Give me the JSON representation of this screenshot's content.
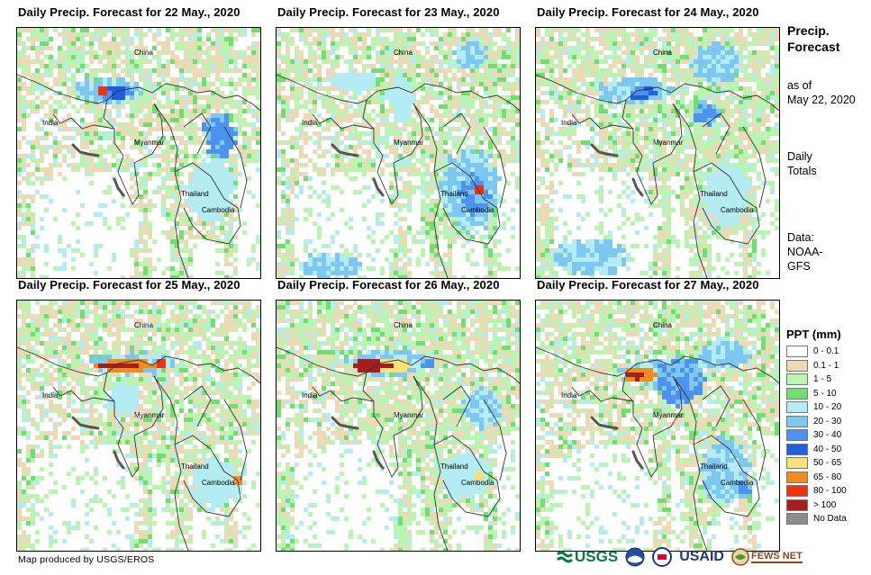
{
  "maps": [
    {
      "title": "Daily Precip. Forecast for 22 May., 2020",
      "scenario": 0
    },
    {
      "title": "Daily Precip. Forecast for 23 May., 2020",
      "scenario": 1
    },
    {
      "title": "Daily Precip. Forecast for 24 May., 2020",
      "scenario": 2
    },
    {
      "title": "Daily Precip. Forecast for 25 May., 2020",
      "scenario": 3
    },
    {
      "title": "Daily Precip. Forecast for 26 May., 2020",
      "scenario": 4
    },
    {
      "title": "Daily Precip. Forecast for 27 May., 2020",
      "scenario": 5
    }
  ],
  "place_labels": {
    "china": "China",
    "india": "India",
    "myanmar": "Myanmar",
    "thailand": "Thailand",
    "cambodia": "Cambodia"
  },
  "side": {
    "title_line1": "Precip.",
    "title_line2": "Forecast",
    "asof_line1": "as of",
    "asof_line2": "May 22, 2020",
    "daily_line1": "Daily",
    "daily_line2": "Totals",
    "data_line1": "Data:",
    "data_line2": "NOAA-",
    "data_line3": "GFS"
  },
  "legend": {
    "title": "PPT (mm)",
    "items": [
      {
        "label": "0 - 0.1",
        "color": "#ffffff"
      },
      {
        "label": "0.1 - 1",
        "color": "#ecd9b6"
      },
      {
        "label": "1 - 5",
        "color": "#b9f4b0"
      },
      {
        "label": "5 - 10",
        "color": "#6fe06f"
      },
      {
        "label": "10 - 20",
        "color": "#b4ecf4"
      },
      {
        "label": "20 - 30",
        "color": "#7cc8f2"
      },
      {
        "label": "30 - 40",
        "color": "#4b93ee"
      },
      {
        "label": "40 - 50",
        "color": "#1f5fdc"
      },
      {
        "label": "50 - 65",
        "color": "#f6e27a"
      },
      {
        "label": "65 - 80",
        "color": "#f08c1c"
      },
      {
        "label": "80 - 100",
        "color": "#ee3311"
      },
      {
        "label": "> 100",
        "color": "#a51d1d"
      },
      {
        "label": "No Data",
        "color": "#8c8c8c"
      }
    ]
  },
  "footer": "Map produced by USGS/EROS",
  "logos": {
    "usgs": "USGS",
    "usaid": "USAID",
    "fewsnet": "FEWS NET"
  }
}
